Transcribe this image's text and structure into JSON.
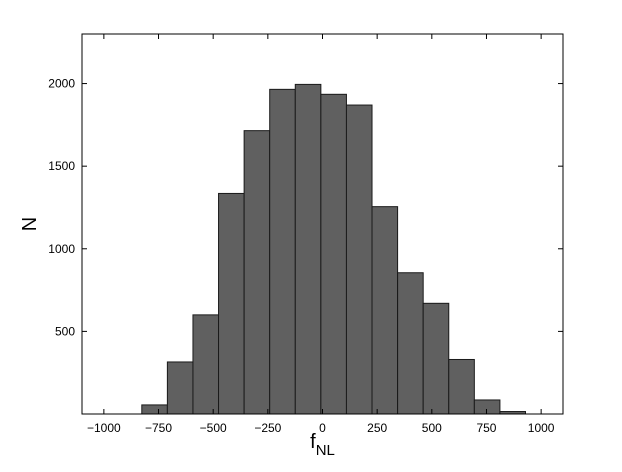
{
  "chart_data": {
    "type": "bar",
    "title": "",
    "xlabel": "f",
    "xlabel_subscript": "NL",
    "ylabel": "N",
    "xlim": [
      -1100,
      1100
    ],
    "ylim": [
      0,
      2300
    ],
    "xticks": [
      -1000,
      -750,
      -500,
      -250,
      0,
      250,
      500,
      750,
      1000
    ],
    "xtick_labels": [
      "−1000",
      "−750",
      "−500",
      "−250",
      "0",
      "250",
      "500",
      "750",
      "1000"
    ],
    "yticks": [
      500,
      1000,
      1500,
      2000
    ],
    "ytick_labels": [
      "500",
      "1000",
      "1500",
      "2000"
    ],
    "bin_width": 117,
    "bins": [
      {
        "center": -768,
        "value": 55
      },
      {
        "center": -651,
        "value": 315
      },
      {
        "center": -534,
        "value": 600
      },
      {
        "center": -417,
        "value": 1335
      },
      {
        "center": -300,
        "value": 1715
      },
      {
        "center": -183,
        "value": 1965
      },
      {
        "center": -66,
        "value": 1995
      },
      {
        "center": 51,
        "value": 1935
      },
      {
        "center": 168,
        "value": 1870
      },
      {
        "center": 285,
        "value": 1255
      },
      {
        "center": 402,
        "value": 855
      },
      {
        "center": 519,
        "value": 670
      },
      {
        "center": 636,
        "value": 330
      },
      {
        "center": 753,
        "value": 85
      },
      {
        "center": 870,
        "value": 15
      }
    ],
    "grid": false,
    "colors": {
      "bar_fill": "#606060",
      "bar_stroke": "#1a1a1a",
      "axis": "#000000"
    }
  }
}
